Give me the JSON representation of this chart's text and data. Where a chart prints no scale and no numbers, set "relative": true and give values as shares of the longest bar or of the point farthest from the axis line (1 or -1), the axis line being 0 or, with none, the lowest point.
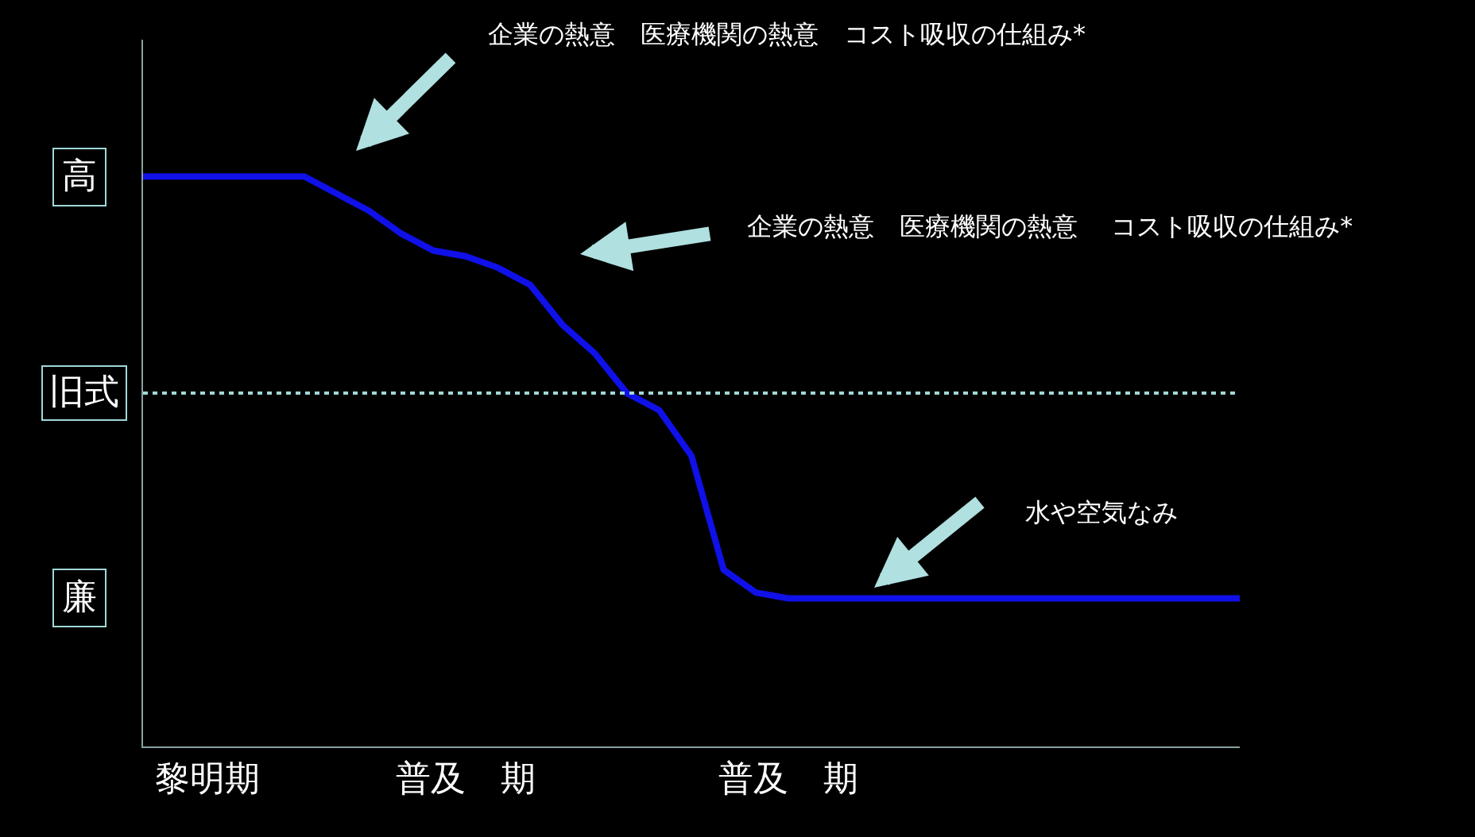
{
  "chart_data": {
    "type": "line",
    "relative": true,
    "categories": [
      null,
      null,
      "黎明期",
      null,
      null,
      null,
      null,
      null,
      null,
      null,
      "普及　期",
      null,
      null,
      null,
      null,
      null,
      null,
      null,
      null,
      null,
      "普及　期",
      null,
      null,
      null,
      null,
      null,
      null,
      null,
      null,
      null,
      null,
      null,
      null,
      null,
      null
    ],
    "series": [
      {
        "color": "#1010e8",
        "values": [
          1.0,
          1.0,
          1.0,
          1.0,
          1.0,
          1.0,
          0.97,
          0.94,
          0.9,
          0.87,
          0.86,
          0.84,
          0.81,
          0.74,
          0.69,
          0.62,
          0.59,
          0.51,
          0.31,
          0.27,
          0.26,
          0.26,
          0.26,
          0.26,
          0.26,
          0.26,
          0.26,
          0.26,
          0.26,
          0.26,
          0.26,
          0.26,
          0.26,
          0.26,
          0.26
        ]
      }
    ],
    "ref_lines": [
      {
        "axis": "y",
        "value": 0.62,
        "label": "旧式",
        "color": "#a0d8d8",
        "line_style": "dotted"
      }
    ],
    "annotations": [
      "高",
      "廉",
      "企業の熱意　医療機関の熱意　コスト吸収の仕組み*",
      "企業の熱意　医療機関の熱意　 コスト吸収の仕組み*",
      "水や空気なみ"
    ],
    "legend": false,
    "grid": false,
    "marker": "none",
    "line_style": "solid"
  }
}
